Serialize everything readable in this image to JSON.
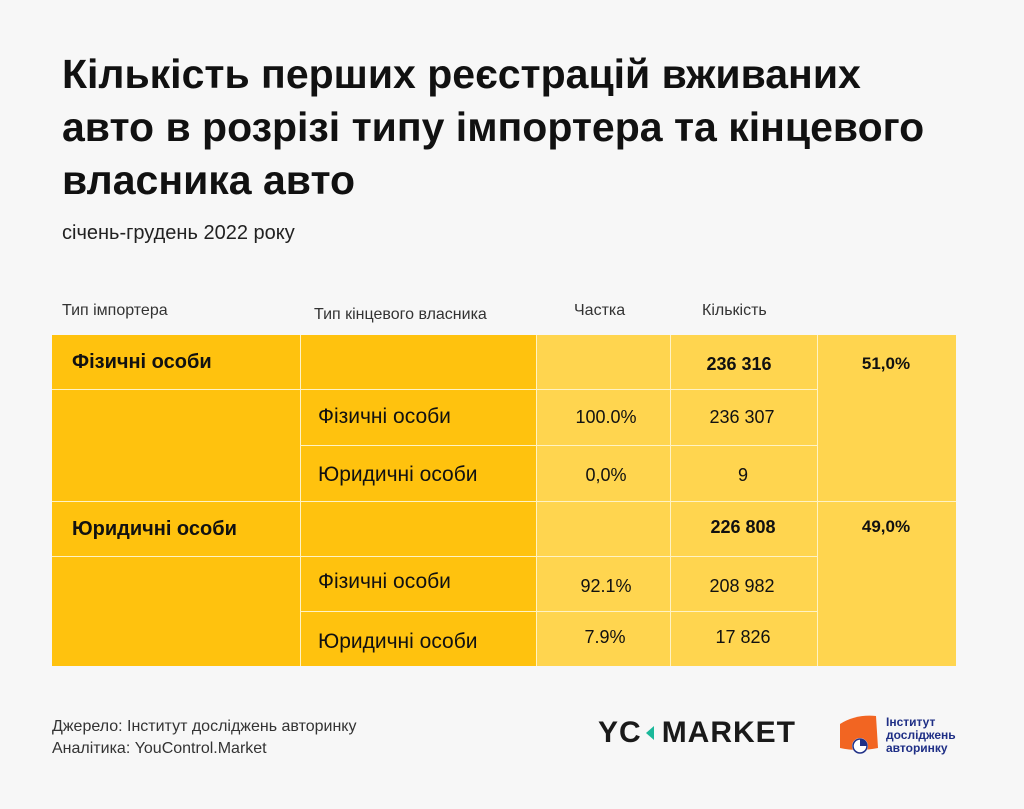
{
  "header": {
    "title": "Кількість перших реєстрацій вживаних авто в розрізі типу імпортера та кінцевого власника авто",
    "subtitle": "січень-грудень 2022 року"
  },
  "columns": {
    "importer": "Тип імпортера",
    "owner": "Тип кінцевого власника",
    "share": "Частка",
    "count": "Кількість"
  },
  "groups": [
    {
      "importer": "Фізичні особи",
      "total": "236  316",
      "total_share": "51,0%",
      "rows": [
        {
          "owner": "Фізичні особи",
          "share": "100.0%",
          "count": "236 307"
        },
        {
          "owner": "Юридичні особи",
          "share": "0,0%",
          "count": "9"
        }
      ]
    },
    {
      "importer": "Юридичні особи",
      "total": "226 808",
      "total_share": "49,0%",
      "rows": [
        {
          "owner": "Фізичні особи",
          "share": "92.1%",
          "count": "208 982"
        },
        {
          "owner": "Юридичні особи",
          "share": "7.9%",
          "count": "17 826"
        }
      ]
    }
  ],
  "footer": {
    "source": "Джерело: Інститут досліджень авторинку",
    "analytics": "Аналітика: YouControl.Market",
    "yc_logo_left": "YC",
    "yc_logo_right": "MARKET",
    "institute_line1": "Інститут",
    "institute_line2": "досліджень",
    "institute_line3": "авторинку"
  },
  "colors": {
    "dark_yellow": "#ffc20e",
    "light_yellow": "#ffd54f",
    "institute_orange": "#f26522",
    "institute_blue": "#1f2f86"
  }
}
